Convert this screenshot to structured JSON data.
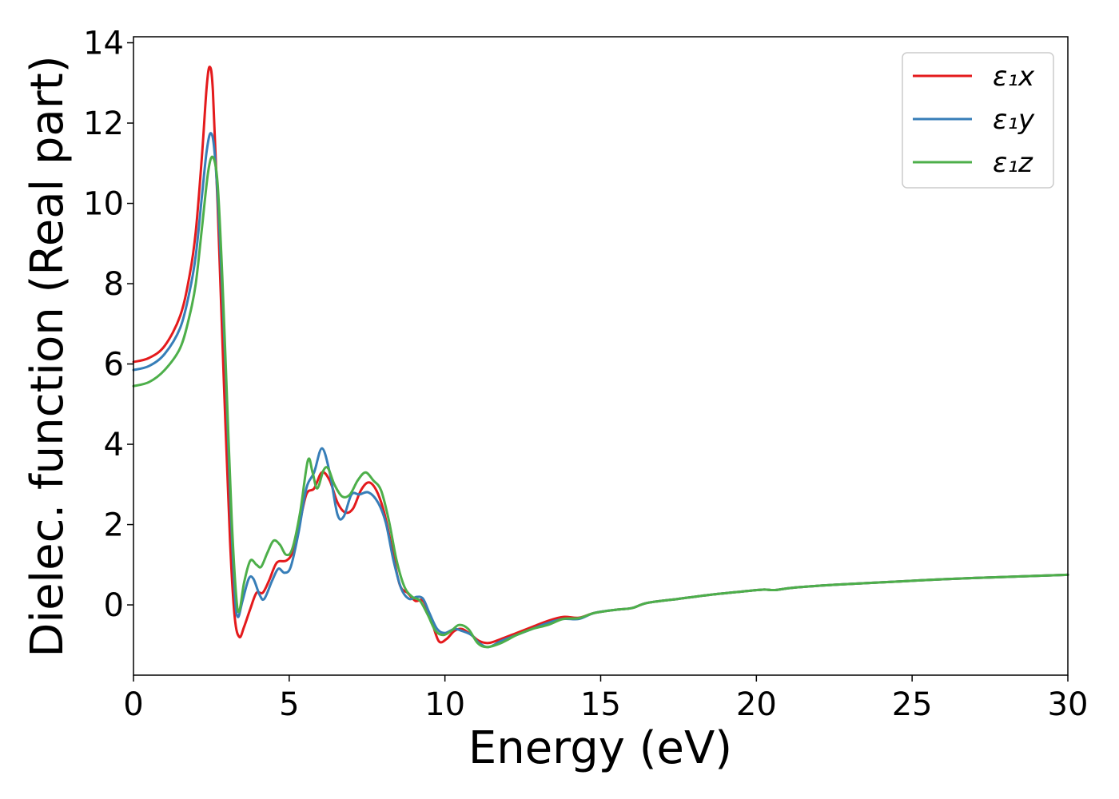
{
  "chart_data": {
    "type": "line",
    "xlabel": "Energy (eV)",
    "ylabel": "Dielec. function (Real part)",
    "xlim": [
      0,
      30
    ],
    "ylim": [
      -1.75,
      14.15
    ],
    "xticks": [
      0,
      5,
      10,
      15,
      20,
      25,
      30
    ],
    "yticks": [
      0,
      2,
      4,
      6,
      8,
      10,
      12,
      14
    ],
    "grid": false,
    "legend_position": "top-right",
    "series": [
      {
        "name": "ε₁x",
        "color": "#e41a1c",
        "points": [
          [
            0,
            6.05
          ],
          [
            0.5,
            6.15
          ],
          [
            1.0,
            6.45
          ],
          [
            1.5,
            7.2
          ],
          [
            1.8,
            8.2
          ],
          [
            2.0,
            9.3
          ],
          [
            2.2,
            11.2
          ],
          [
            2.35,
            12.9
          ],
          [
            2.45,
            13.4
          ],
          [
            2.55,
            12.8
          ],
          [
            2.7,
            10.0
          ],
          [
            2.9,
            5.6
          ],
          [
            3.1,
            1.6
          ],
          [
            3.25,
            -0.3
          ],
          [
            3.4,
            -0.8
          ],
          [
            3.55,
            -0.55
          ],
          [
            3.75,
            -0.1
          ],
          [
            3.95,
            0.3
          ],
          [
            4.15,
            0.3
          ],
          [
            4.35,
            0.6
          ],
          [
            4.6,
            1.05
          ],
          [
            4.9,
            1.1
          ],
          [
            5.1,
            1.3
          ],
          [
            5.3,
            1.9
          ],
          [
            5.55,
            2.75
          ],
          [
            5.8,
            2.9
          ],
          [
            6.05,
            3.3
          ],
          [
            6.3,
            3.1
          ],
          [
            6.55,
            2.55
          ],
          [
            6.8,
            2.3
          ],
          [
            7.05,
            2.4
          ],
          [
            7.3,
            2.85
          ],
          [
            7.55,
            3.05
          ],
          [
            7.8,
            2.85
          ],
          [
            8.05,
            2.3
          ],
          [
            8.3,
            1.4
          ],
          [
            8.55,
            0.5
          ],
          [
            8.8,
            0.3
          ],
          [
            9.05,
            0.1
          ],
          [
            9.3,
            0.1
          ],
          [
            9.55,
            -0.35
          ],
          [
            9.8,
            -0.9
          ],
          [
            10.05,
            -0.85
          ],
          [
            10.3,
            -0.65
          ],
          [
            10.55,
            -0.6
          ],
          [
            10.85,
            -0.75
          ],
          [
            11.1,
            -0.9
          ],
          [
            11.4,
            -0.95
          ],
          [
            11.8,
            -0.85
          ],
          [
            12.3,
            -0.7
          ],
          [
            12.8,
            -0.55
          ],
          [
            13.3,
            -0.4
          ],
          [
            13.8,
            -0.3
          ],
          [
            14.3,
            -0.32
          ],
          [
            14.8,
            -0.2
          ],
          [
            15.5,
            -0.12
          ],
          [
            16.0,
            -0.08
          ],
          [
            16.5,
            0.05
          ],
          [
            17.5,
            0.15
          ],
          [
            18.5,
            0.25
          ],
          [
            19.5,
            0.33
          ],
          [
            20.2,
            0.38
          ],
          [
            20.6,
            0.37
          ],
          [
            21.2,
            0.43
          ],
          [
            22.5,
            0.5
          ],
          [
            24,
            0.56
          ],
          [
            25.5,
            0.62
          ],
          [
            27,
            0.67
          ],
          [
            28.5,
            0.71
          ],
          [
            30,
            0.75
          ]
        ]
      },
      {
        "name": "ε₁y",
        "color": "#377eb8",
        "points": [
          [
            0,
            5.85
          ],
          [
            0.5,
            5.95
          ],
          [
            1.0,
            6.25
          ],
          [
            1.5,
            6.9
          ],
          [
            1.8,
            7.8
          ],
          [
            2.0,
            8.7
          ],
          [
            2.2,
            10.2
          ],
          [
            2.35,
            11.3
          ],
          [
            2.48,
            11.75
          ],
          [
            2.6,
            11.3
          ],
          [
            2.75,
            9.5
          ],
          [
            2.95,
            6.0
          ],
          [
            3.1,
            2.8
          ],
          [
            3.25,
            0.3
          ],
          [
            3.35,
            -0.3
          ],
          [
            3.5,
            0.1
          ],
          [
            3.7,
            0.65
          ],
          [
            3.85,
            0.65
          ],
          [
            4.05,
            0.25
          ],
          [
            4.2,
            0.15
          ],
          [
            4.45,
            0.6
          ],
          [
            4.65,
            0.9
          ],
          [
            4.85,
            0.8
          ],
          [
            5.05,
            0.95
          ],
          [
            5.3,
            1.8
          ],
          [
            5.55,
            2.9
          ],
          [
            5.8,
            3.3
          ],
          [
            6.05,
            3.9
          ],
          [
            6.3,
            3.3
          ],
          [
            6.55,
            2.25
          ],
          [
            6.75,
            2.2
          ],
          [
            7.0,
            2.75
          ],
          [
            7.25,
            2.75
          ],
          [
            7.55,
            2.8
          ],
          [
            7.85,
            2.55
          ],
          [
            8.1,
            2.05
          ],
          [
            8.35,
            1.1
          ],
          [
            8.6,
            0.4
          ],
          [
            8.85,
            0.15
          ],
          [
            9.1,
            0.2
          ],
          [
            9.3,
            0.15
          ],
          [
            9.5,
            -0.2
          ],
          [
            9.75,
            -0.6
          ],
          [
            10.0,
            -0.7
          ],
          [
            10.3,
            -0.6
          ],
          [
            10.55,
            -0.65
          ],
          [
            10.85,
            -0.75
          ],
          [
            11.1,
            -0.95
          ],
          [
            11.4,
            -1.05
          ],
          [
            11.8,
            -0.9
          ],
          [
            12.3,
            -0.75
          ],
          [
            12.8,
            -0.6
          ],
          [
            13.3,
            -0.45
          ],
          [
            13.8,
            -0.35
          ],
          [
            14.3,
            -0.35
          ],
          [
            14.8,
            -0.2
          ],
          [
            15.5,
            -0.12
          ],
          [
            16.0,
            -0.08
          ],
          [
            16.5,
            0.05
          ],
          [
            17.5,
            0.15
          ],
          [
            18.5,
            0.25
          ],
          [
            19.5,
            0.33
          ],
          [
            20.2,
            0.38
          ],
          [
            20.6,
            0.37
          ],
          [
            21.2,
            0.43
          ],
          [
            22.5,
            0.5
          ],
          [
            24,
            0.56
          ],
          [
            25.5,
            0.62
          ],
          [
            27,
            0.67
          ],
          [
            28.5,
            0.71
          ],
          [
            30,
            0.75
          ]
        ]
      },
      {
        "name": "ε₁z",
        "color": "#4daf4a",
        "points": [
          [
            0,
            5.45
          ],
          [
            0.5,
            5.55
          ],
          [
            1.0,
            5.85
          ],
          [
            1.5,
            6.4
          ],
          [
            1.8,
            7.2
          ],
          [
            2.0,
            8.0
          ],
          [
            2.2,
            9.4
          ],
          [
            2.4,
            10.8
          ],
          [
            2.55,
            11.15
          ],
          [
            2.7,
            10.5
          ],
          [
            2.85,
            8.2
          ],
          [
            3.0,
            5.2
          ],
          [
            3.15,
            2.2
          ],
          [
            3.3,
            0.2
          ],
          [
            3.4,
            -0.15
          ],
          [
            3.55,
            0.55
          ],
          [
            3.75,
            1.1
          ],
          [
            3.95,
            1.0
          ],
          [
            4.1,
            0.95
          ],
          [
            4.3,
            1.3
          ],
          [
            4.5,
            1.6
          ],
          [
            4.7,
            1.5
          ],
          [
            4.9,
            1.25
          ],
          [
            5.1,
            1.4
          ],
          [
            5.35,
            2.3
          ],
          [
            5.6,
            3.6
          ],
          [
            5.75,
            3.3
          ],
          [
            5.9,
            2.9
          ],
          [
            6.1,
            3.35
          ],
          [
            6.25,
            3.4
          ],
          [
            6.45,
            3.0
          ],
          [
            6.7,
            2.7
          ],
          [
            6.95,
            2.75
          ],
          [
            7.2,
            3.1
          ],
          [
            7.45,
            3.3
          ],
          [
            7.7,
            3.1
          ],
          [
            7.95,
            2.85
          ],
          [
            8.2,
            2.1
          ],
          [
            8.45,
            1.1
          ],
          [
            8.7,
            0.45
          ],
          [
            8.95,
            0.2
          ],
          [
            9.2,
            0.1
          ],
          [
            9.45,
            -0.25
          ],
          [
            9.7,
            -0.65
          ],
          [
            9.95,
            -0.75
          ],
          [
            10.2,
            -0.65
          ],
          [
            10.45,
            -0.5
          ],
          [
            10.75,
            -0.6
          ],
          [
            11.05,
            -0.95
          ],
          [
            11.35,
            -1.05
          ],
          [
            11.8,
            -0.95
          ],
          [
            12.3,
            -0.75
          ],
          [
            12.8,
            -0.6
          ],
          [
            13.3,
            -0.5
          ],
          [
            13.8,
            -0.35
          ],
          [
            14.3,
            -0.33
          ],
          [
            14.8,
            -0.2
          ],
          [
            15.5,
            -0.12
          ],
          [
            16.0,
            -0.08
          ],
          [
            16.5,
            0.05
          ],
          [
            17.5,
            0.15
          ],
          [
            18.5,
            0.25
          ],
          [
            19.5,
            0.33
          ],
          [
            20.2,
            0.38
          ],
          [
            20.6,
            0.37
          ],
          [
            21.2,
            0.43
          ],
          [
            22.5,
            0.5
          ],
          [
            24,
            0.56
          ],
          [
            25.5,
            0.62
          ],
          [
            27,
            0.67
          ],
          [
            28.5,
            0.71
          ],
          [
            30,
            0.75
          ]
        ]
      }
    ]
  }
}
